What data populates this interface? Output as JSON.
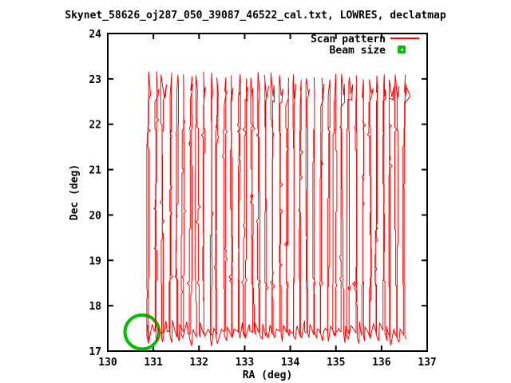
{
  "title": "Skynet_58626_oj287_050_39087_46522_cal.txt, LOWRES, declatmap",
  "axes": {
    "xlabel": "RA (deg)",
    "ylabel": "Dec (deg)",
    "x_ticks": [
      "130",
      "131",
      "132",
      "133",
      "134",
      "135",
      "136",
      "137"
    ],
    "y_ticks": [
      "17",
      "18",
      "19",
      "20",
      "21",
      "22",
      "23",
      "24"
    ]
  },
  "legend": {
    "items": [
      {
        "label": "Scan pattern",
        "color": "#ff0000",
        "sample": "line"
      },
      {
        "label": "Beam size",
        "color": "#00c000",
        "sample": "point"
      }
    ]
  },
  "colors": {
    "scan": "#ff0000",
    "beam": "#00c000",
    "axis": "#000000",
    "background": "#ffffff"
  },
  "chart_data": {
    "type": "line",
    "title": "Skynet_58626_oj287_050_39087_46522_cal.txt, LOWRES, declatmap",
    "xlabel": "RA (deg)",
    "ylabel": "Dec (deg)",
    "xlim": [
      130,
      137
    ],
    "ylim": [
      17,
      24
    ],
    "x_ticks": [
      130,
      131,
      132,
      133,
      134,
      135,
      136,
      137
    ],
    "y_ticks": [
      17,
      18,
      19,
      20,
      21,
      22,
      23,
      24
    ],
    "grid": false,
    "legend_position": "top-right-inside",
    "series": [
      {
        "name": "Scan pattern",
        "type": "raster_scan_path",
        "color": "#ff0000",
        "pattern": {
          "columns": 38,
          "ra_start": 130.9,
          "ra_step": 0.151,
          "dec_scan_bottom": 17.35,
          "dec_scan_top": 22.9,
          "peak_dec": [
            22.98,
            23.18
          ],
          "settle_dec": [
            22.4,
            22.92
          ],
          "bottom_dip": [
            17.18,
            17.42
          ],
          "bottom_wiggle": [
            17.45,
            17.68
          ],
          "jitter_bands_dec": [
            [
              21.75,
              22.05
            ],
            [
              18.35,
              18.62
            ]
          ],
          "seed": 9,
          "end_tail": {
            "ra_offset": 0.14,
            "dec": 22.62
          }
        }
      },
      {
        "name": "Beam size",
        "type": "circle",
        "color": "#00c000",
        "center": {
          "ra": 130.75,
          "dec": 17.42
        },
        "diameter_deg": 0.75
      }
    ]
  }
}
